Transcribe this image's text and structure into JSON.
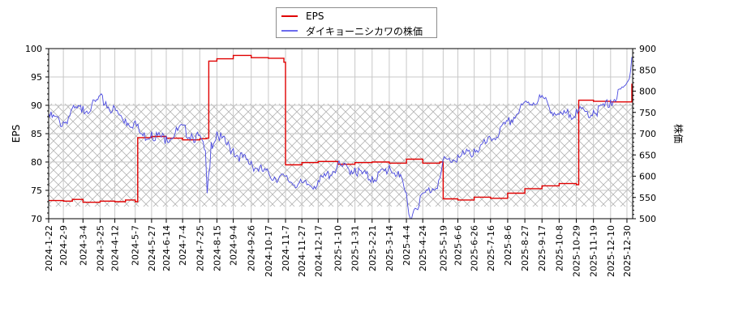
{
  "chart_data": {
    "type": "line",
    "title": "",
    "legend": {
      "position": "top-center",
      "entries": [
        {
          "label": "EPS",
          "color": "#e00000"
        },
        {
          "label": "ダイキョーニシカワの株価",
          "color": "#3333cc"
        }
      ]
    },
    "y_left": {
      "label": "EPS",
      "range": [
        70,
        100
      ],
      "ticks": [
        70,
        75,
        80,
        85,
        90,
        95,
        100
      ]
    },
    "y_right": {
      "label": "株価",
      "range": [
        500,
        900
      ],
      "ticks": [
        500,
        550,
        600,
        650,
        700,
        750,
        800,
        850,
        900
      ]
    },
    "x_tick_labels": [
      "2024-1-22",
      "2024-2-9",
      "2024-3-4",
      "2024-3-25",
      "2024-4-12",
      "2024-5-7",
      "2024-5-27",
      "2024-6-14",
      "2024-7-4",
      "2024-7-25",
      "2024-8-15",
      "2024-9-4",
      "2024-9-26",
      "2024-10-17",
      "2024-11-7",
      "2024-11-27",
      "2024-12-17",
      "2025-1-10",
      "2025-1-31",
      "2025-2-21",
      "2025-3-14",
      "2025-4-4",
      "2025-4-24",
      "2025-5-19",
      "2025-6-6",
      "2025-6-26",
      "2025-7-16",
      "2025-8-6",
      "2025-8-27",
      "2025-9-17",
      "2025-10-8",
      "2025-10-29",
      "2025-11-19",
      "2025-12-10",
      "2025-12-30"
    ],
    "grid": true,
    "shaded_band": {
      "eps_from": 72.2,
      "eps_to": 90.3,
      "pattern": "crosshatch"
    },
    "series": [
      {
        "name": "EPS",
        "axis": "left",
        "color": "#e00000",
        "points": [
          [
            "2024-1-22",
            73.2
          ],
          [
            "2024-2-9",
            73.1
          ],
          [
            "2024-2-20",
            73.4
          ],
          [
            "2024-3-4",
            72.9
          ],
          [
            "2024-3-25",
            73.1
          ],
          [
            "2024-4-12",
            73.0
          ],
          [
            "2024-4-25",
            73.3
          ],
          [
            "2024-5-7",
            73.0
          ],
          [
            "2024-5-10",
            84.3
          ],
          [
            "2024-5-27",
            84.5
          ],
          [
            "2024-6-14",
            84.2
          ],
          [
            "2024-7-4",
            83.9
          ],
          [
            "2024-7-25",
            84.1
          ],
          [
            "2024-8-2",
            84.2
          ],
          [
            "2024-8-5",
            97.8
          ],
          [
            "2024-8-15",
            98.2
          ],
          [
            "2024-9-4",
            98.8
          ],
          [
            "2024-9-26",
            98.4
          ],
          [
            "2024-10-17",
            98.3
          ],
          [
            "2024-11-5",
            97.6
          ],
          [
            "2024-11-7",
            79.5
          ],
          [
            "2024-11-27",
            79.9
          ],
          [
            "2024-12-17",
            80.1
          ],
          [
            "2025-1-10",
            79.6
          ],
          [
            "2025-1-31",
            79.9
          ],
          [
            "2025-2-21",
            80.0
          ],
          [
            "2025-3-14",
            79.8
          ],
          [
            "2025-4-4",
            80.5
          ],
          [
            "2025-4-24",
            79.8
          ],
          [
            "2025-5-15",
            80.0
          ],
          [
            "2025-5-19",
            73.5
          ],
          [
            "2025-6-6",
            73.3
          ],
          [
            "2025-6-26",
            73.8
          ],
          [
            "2025-7-16",
            73.6
          ],
          [
            "2025-8-6",
            74.5
          ],
          [
            "2025-8-27",
            75.3
          ],
          [
            "2025-9-17",
            75.8
          ],
          [
            "2025-10-8",
            76.2
          ],
          [
            "2025-10-29",
            76.0
          ],
          [
            "2025-11-1",
            90.9
          ],
          [
            "2025-11-19",
            90.7
          ],
          [
            "2025-12-10",
            90.6
          ],
          [
            "2025-12-30",
            90.6
          ],
          [
            "2026-1-5",
            93.7
          ]
        ]
      },
      {
        "name": "ダイキョーニシカワの株価",
        "axis": "right",
        "color": "#3333cc",
        "points": [
          [
            "2024-1-22",
            748
          ],
          [
            "2024-2-1",
            740
          ],
          [
            "2024-2-9",
            728
          ],
          [
            "2024-2-20",
            760
          ],
          [
            "2024-3-4",
            765
          ],
          [
            "2024-3-15",
            770
          ],
          [
            "2024-3-25",
            790
          ],
          [
            "2024-4-1",
            775
          ],
          [
            "2024-4-12",
            760
          ],
          [
            "2024-4-25",
            735
          ],
          [
            "2024-5-7",
            730
          ],
          [
            "2024-5-15",
            700
          ],
          [
            "2024-5-27",
            705
          ],
          [
            "2024-6-14",
            695
          ],
          [
            "2024-7-4",
            720
          ],
          [
            "2024-7-15",
            700
          ],
          [
            "2024-7-25",
            697
          ],
          [
            "2024-8-1",
            660
          ],
          [
            "2024-8-3",
            560
          ],
          [
            "2024-8-8",
            680
          ],
          [
            "2024-8-15",
            705
          ],
          [
            "2024-9-4",
            665
          ],
          [
            "2024-9-26",
            635
          ],
          [
            "2024-10-17",
            610
          ],
          [
            "2024-11-7",
            600
          ],
          [
            "2024-11-27",
            585
          ],
          [
            "2024-12-17",
            590
          ],
          [
            "2025-1-10",
            630
          ],
          [
            "2025-1-31",
            620
          ],
          [
            "2025-2-21",
            600
          ],
          [
            "2025-3-14",
            625
          ],
          [
            "2025-3-25",
            612
          ],
          [
            "2025-4-4",
            560
          ],
          [
            "2025-4-7",
            510
          ],
          [
            "2025-4-24",
            560
          ],
          [
            "2025-5-15",
            595
          ],
          [
            "2025-5-19",
            640
          ],
          [
            "2025-6-6",
            650
          ],
          [
            "2025-6-26",
            665
          ],
          [
            "2025-7-16",
            690
          ],
          [
            "2025-8-6",
            730
          ],
          [
            "2025-8-27",
            775
          ],
          [
            "2025-9-17",
            790
          ],
          [
            "2025-10-8",
            745
          ],
          [
            "2025-10-29",
            758
          ],
          [
            "2025-11-19",
            755
          ],
          [
            "2025-12-10",
            780
          ],
          [
            "2025-12-30",
            820
          ],
          [
            "2026-1-5",
            880
          ]
        ]
      }
    ]
  }
}
